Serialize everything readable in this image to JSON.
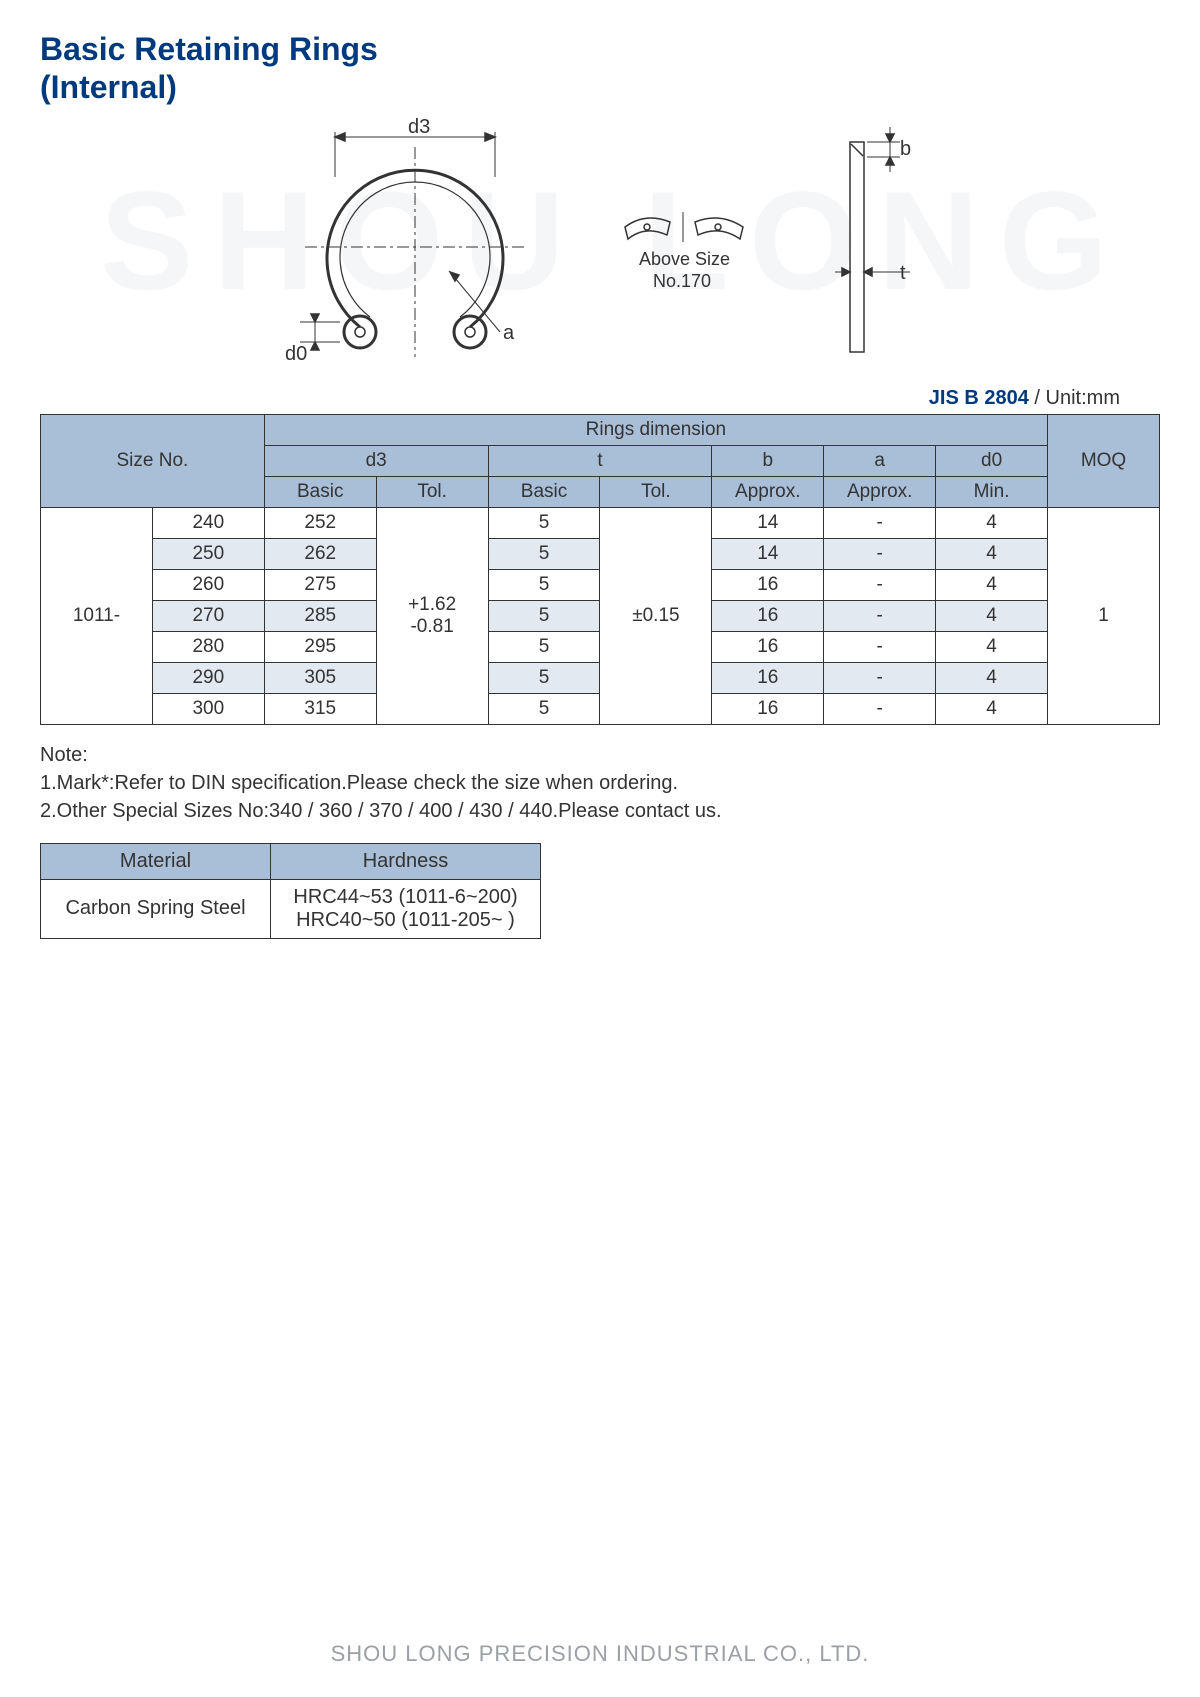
{
  "title_line1": "Basic Retaining Rings",
  "title_line2": "(Internal)",
  "watermark": "SHOU LONG",
  "diagram": {
    "labels": {
      "d3": "d3",
      "d0": "d0",
      "a": "a",
      "b": "b",
      "t": "t"
    },
    "above_size_label": "Above Size",
    "above_size_no": "No.170",
    "stroke_color": "#333333"
  },
  "standard": {
    "code": "JIS B 2804",
    "unit": " / Unit:mm"
  },
  "table": {
    "headers": {
      "size_no": "Size No.",
      "rings_dimension": "Rings dimension",
      "moq": "MOQ",
      "d3": "d3",
      "t": "t",
      "b": "b",
      "a": "a",
      "d0": "d0",
      "basic": "Basic",
      "tol": "Tol.",
      "approx": "Approx.",
      "min": "Min."
    },
    "size_prefix": "1011-",
    "d3_tol": "+1.62\n-0.81",
    "t_tol": "±0.15",
    "moq_value": "1",
    "rows": [
      {
        "size": "240",
        "d3": "252",
        "tb": "5",
        "b": "14",
        "a": "-",
        "d0": "4"
      },
      {
        "size": "250",
        "d3": "262",
        "tb": "5",
        "b": "14",
        "a": "-",
        "d0": "4"
      },
      {
        "size": "260",
        "d3": "275",
        "tb": "5",
        "b": "16",
        "a": "-",
        "d0": "4"
      },
      {
        "size": "270",
        "d3": "285",
        "tb": "5",
        "b": "16",
        "a": "-",
        "d0": "4"
      },
      {
        "size": "280",
        "d3": "295",
        "tb": "5",
        "b": "16",
        "a": "-",
        "d0": "4"
      },
      {
        "size": "290",
        "d3": "305",
        "tb": "5",
        "b": "16",
        "a": "-",
        "d0": "4"
      },
      {
        "size": "300",
        "d3": "315",
        "tb": "5",
        "b": "16",
        "a": "-",
        "d0": "4"
      }
    ],
    "header_bg": "#a9bfd8",
    "alt_bg": "#e2e9f1",
    "border_color": "#333333"
  },
  "notes": {
    "label": "Note:",
    "line1": "1.Mark*:Refer to DIN specification.Please check the size when ordering.",
    "line2": "2.Other Special Sizes No:340 / 360 / 370 / 400 / 430 / 440.Please contact  us."
  },
  "material_table": {
    "headers": {
      "material": "Material",
      "hardness": "Hardness"
    },
    "material_value": "Carbon Spring Steel",
    "hardness_line1": "HRC44~53 (1011-6~200)",
    "hardness_line2": "HRC40~50 (1011-205~  )"
  },
  "footer": "SHOU LONG PRECISION INDUSTRIAL CO., LTD.",
  "colors": {
    "title": "#003a7e",
    "text": "#333333",
    "watermark": "#f4f6f8",
    "footer": "#9aa0a6",
    "background": "#ffffff"
  }
}
